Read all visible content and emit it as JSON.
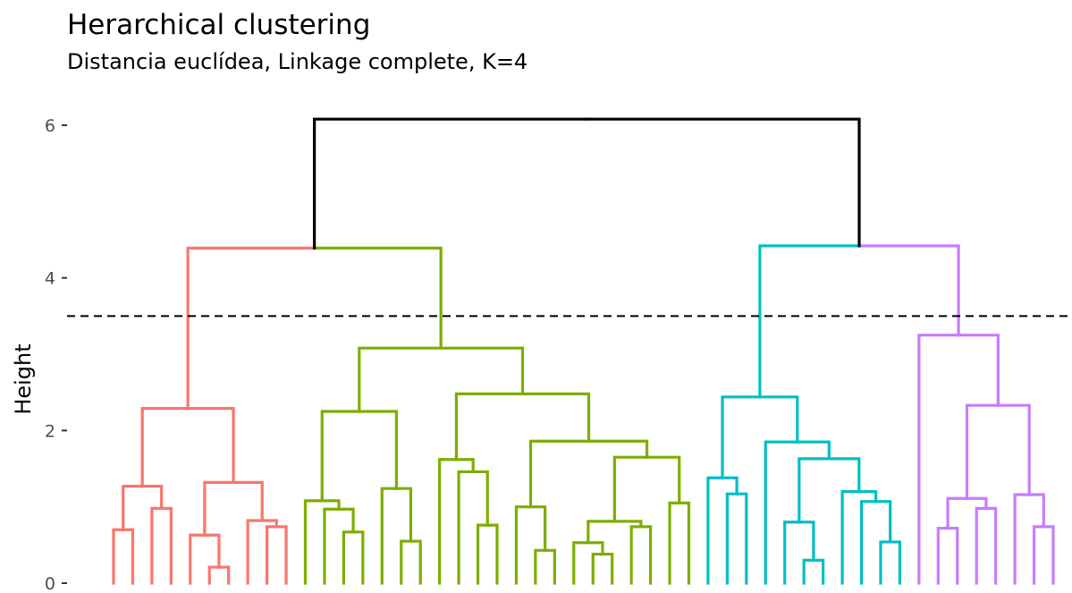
{
  "chart_data": {
    "type": "dendrogram",
    "title": "Herarchical clustering",
    "subtitle": "Distancia euclídea, Linkage complete, K=4",
    "ylabel": "Height",
    "xlabel": "",
    "ylim": [
      0,
      6.1
    ],
    "yticks": [
      "0",
      "2",
      "4",
      "6"
    ],
    "cut_height": 3.5,
    "n_leaves": 50,
    "clusters": [
      {
        "name": "cluster-1",
        "color": "#F8766D",
        "tree": [
          2.29,
          [
            1.27,
            [
              0.7,
              0,
              1
            ],
            [
              0.98,
              2,
              3
            ]
          ],
          [
            1.32,
            [
              0.63,
              4,
              [
                0.21,
                5,
                6
              ]
            ],
            [
              0.82,
              7,
              [
                0.74,
                8,
                9
              ]
            ]
          ]
        ]
      },
      {
        "name": "cluster-2",
        "color": "#7CAE00",
        "tree": [
          3.08,
          [
            2.25,
            [
              1.08,
              10,
              [
                0.97,
                11,
                [
                  0.67,
                  12,
                  13
                ]
              ]
            ],
            [
              1.24,
              14,
              [
                0.55,
                15,
                16
              ]
            ]
          ],
          [
            2.48,
            [
              1.62,
              17,
              [
                1.46,
                18,
                [
                  0.76,
                  19,
                  20
                ]
              ]
            ],
            [
              1.86,
              [
                1.0,
                21,
                [
                  0.43,
                  22,
                  23
                ]
              ],
              [
                1.65,
                [
                  0.81,
                  [
                    0.53,
                    24,
                    [
                      0.38,
                      25,
                      26
                    ]
                  ],
                  [
                    0.74,
                    27,
                    28
                  ]
                ],
                [
                  1.05,
                  29,
                  30
                ]
              ]
            ]
          ]
        ]
      },
      {
        "name": "cluster-3",
        "color": "#00BFC4",
        "tree": [
          2.44,
          [
            1.38,
            31,
            [
              1.17,
              32,
              33
            ]
          ],
          [
            1.85,
            34,
            [
              1.63,
              [
                0.8,
                35,
                [
                  0.3,
                  36,
                  37
                ]
              ],
              [
                1.2,
                38,
                [
                  1.07,
                  39,
                  [
                    0.54,
                    40,
                    41
                  ]
                ]
              ]
            ]
          ]
        ]
      },
      {
        "name": "cluster-4",
        "color": "#C77CFF",
        "tree": [
          3.25,
          42,
          [
            2.33,
            [
              1.11,
              [
                0.72,
                43,
                44
              ],
              [
                0.98,
                45,
                46
              ]
            ],
            [
              1.16,
              47,
              [
                0.74,
                48,
                49
              ]
            ]
          ]
        ]
      }
    ],
    "upper_tree": [
      6.08,
      [
        4.39,
        "cluster-1",
        "cluster-2"
      ],
      [
        4.42,
        "cluster-3",
        "cluster-4"
      ]
    ],
    "upper_color": "#000000"
  }
}
